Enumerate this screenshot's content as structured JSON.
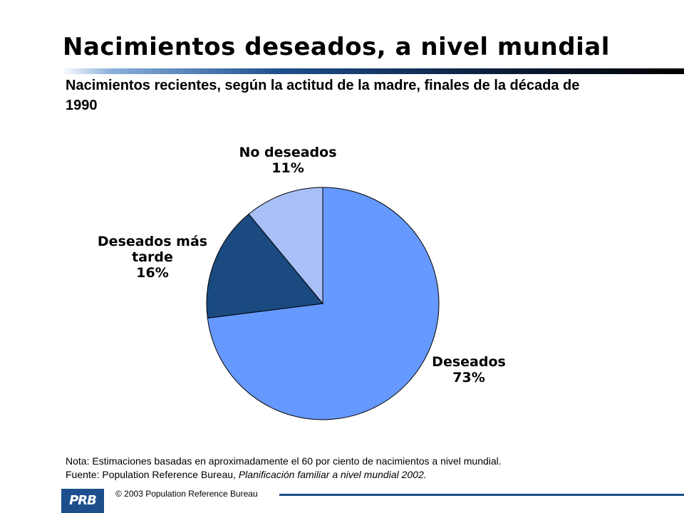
{
  "header": {
    "title": "Nacimientos deseados, a nivel mundial",
    "subtitle": "Nacimientos recientes, según la actitud de la madre, finales de la década de 1990"
  },
  "chart_data": {
    "type": "pie",
    "title": "",
    "categories": [
      "Deseados",
      "Deseados más tarde",
      "No deseados"
    ],
    "values": [
      73,
      16,
      11
    ],
    "value_labels": [
      "73%",
      "16%",
      "11%"
    ],
    "colors": [
      "#6699ff",
      "#1a4a80",
      "#a8bff8"
    ],
    "label_lines": [
      [
        "Deseados",
        "73%"
      ],
      [
        "Deseados más",
        "tarde",
        "16%"
      ],
      [
        "No deseados",
        "11%"
      ]
    ]
  },
  "notes": {
    "nota": "Nota: Estimaciones basadas en aproximadamente el 60 por ciento de nacimientos a nivel mundial.",
    "fuente_prefix": "Fuente: Population Reference Bureau, ",
    "fuente_title": "Planificación familiar a nivel mundial 2002."
  },
  "footer": {
    "logo_text": "PRB",
    "copyright": "© 2003 Population Reference Bureau"
  }
}
